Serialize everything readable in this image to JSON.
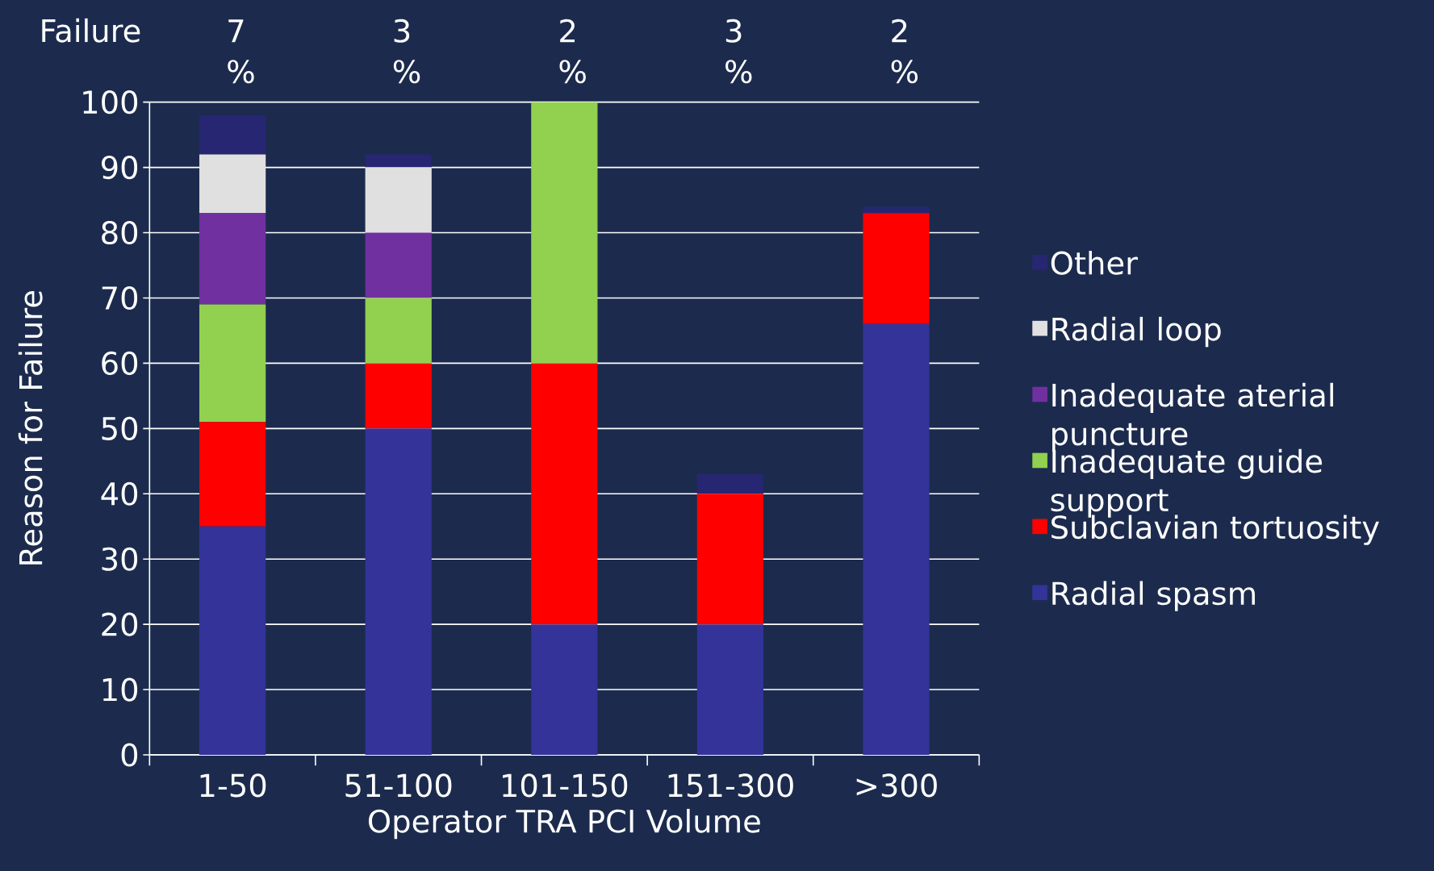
{
  "chart_data": {
    "type": "bar",
    "stacked": true,
    "xlabel": "Operator TRA PCI Volume",
    "ylabel": "Reason for Failure",
    "categories": [
      "1-50",
      "51-100",
      "101-150",
      "151-300",
      ">300"
    ],
    "series": [
      {
        "name": "Radial spasm",
        "color": "#333399",
        "values": [
          35,
          50,
          20,
          20,
          66
        ]
      },
      {
        "name": "Subclavian tortuosity",
        "color": "#ff0000",
        "values": [
          16,
          10,
          40,
          20,
          17
        ]
      },
      {
        "name": "Inadequate guide support",
        "color": "#92d050",
        "values": [
          18,
          10,
          40,
          0,
          0
        ]
      },
      {
        "name": "Inadequate aterial puncture",
        "color": "#7030a0",
        "values": [
          14,
          10,
          0,
          0,
          0
        ]
      },
      {
        "name": "Radial loop",
        "color": "#e0e0e0",
        "values": [
          9,
          10,
          0,
          0,
          0
        ]
      },
      {
        "name": "Other",
        "color": "#262673",
        "values": [
          6,
          2,
          0,
          3,
          1
        ]
      }
    ],
    "ylim": [
      0,
      100
    ],
    "yticks": [
      0,
      10,
      20,
      30,
      40,
      50,
      60,
      70,
      80,
      90,
      100
    ],
    "grid": "y",
    "legend": "right",
    "annotations": [
      "Failure",
      "7 %",
      "3 %",
      "2 %",
      "3 %",
      "2 %"
    ]
  }
}
